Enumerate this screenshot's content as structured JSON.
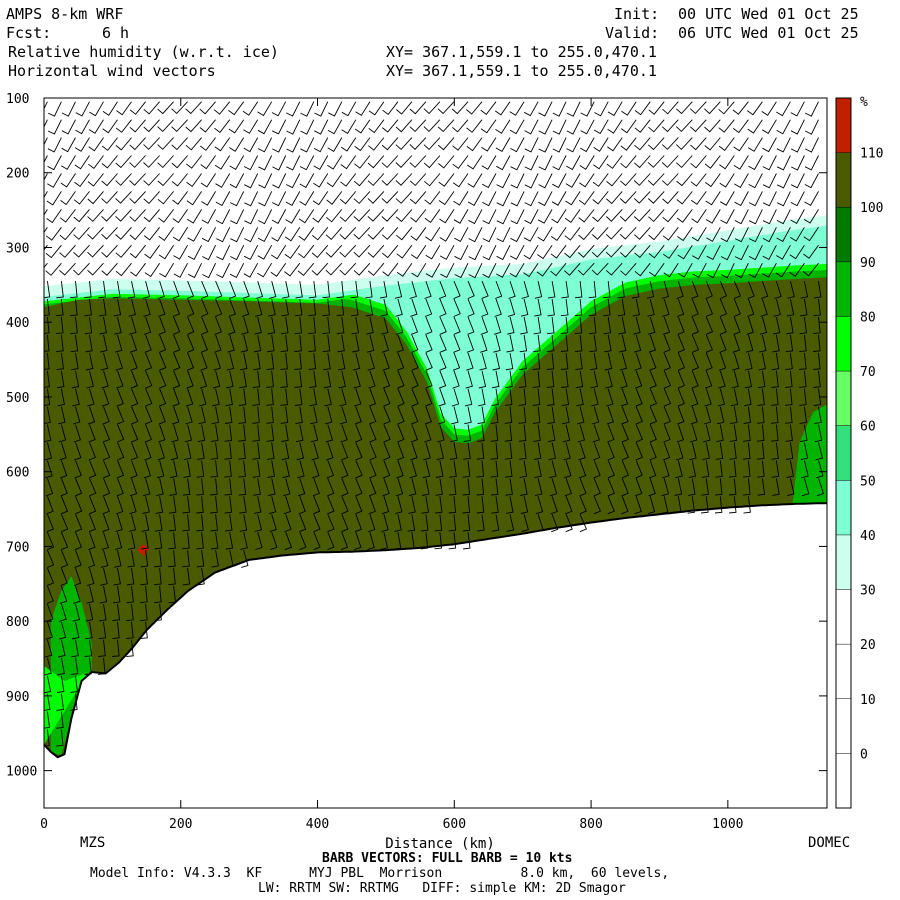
{
  "header": {
    "model": "AMPS 8-km WRF",
    "init_label": "Init:",
    "init_value": "00 UTC Wed 01 Oct 25",
    "fcst_label": "Fcst:",
    "fcst_value": "6 h",
    "valid_label": "Valid:",
    "valid_value": "06 UTC Wed 01 Oct 25",
    "field1": "Relative humidity (w.r.t. ice)",
    "field2": "Horizontal wind vectors",
    "xy1": "XY= 367.1,559.1 to 255.0,470.1",
    "xy2": "XY= 367.1,559.1 to 255.0,470.1"
  },
  "footer": {
    "barb_note": "BARB VECTORS: FULL BARB = 10 kts",
    "model_info": "Model Info: V4.3.3  KF      MYJ PBL  Morrison          8.0 km,  60 levels,",
    "physics": "LW: RRTM SW: RRTMG   DIFF: simple KM: 2D Smagor"
  },
  "chart_data": {
    "type": "heatmap",
    "xlabel": "Distance (km)",
    "ylabel": "",
    "x_ticks": [
      0,
      200,
      400,
      600,
      800,
      1000
    ],
    "y_ticks": [
      100,
      200,
      300,
      400,
      500,
      600,
      700,
      800,
      900,
      1000
    ],
    "xlim": [
      0,
      1145
    ],
    "ylim": [
      1050,
      100
    ],
    "start_label": "MZS",
    "end_label": "DOMEC",
    "colorbar": {
      "unit": "%",
      "levels": [
        0,
        10,
        20,
        30,
        40,
        50,
        60,
        70,
        80,
        90,
        100,
        110
      ],
      "colors": [
        "#ffffff",
        "#ffffff",
        "#ffffff",
        "#ffffff",
        "#ccffee",
        "#7fffd4",
        "#33e07a",
        "#66ff66",
        "#00ff00",
        "#00b400",
        "#007a00",
        "#4a5a00",
        "#c02000"
      ]
    },
    "terrain": {
      "x": [
        0,
        10,
        20,
        30,
        40,
        55,
        70,
        90,
        110,
        130,
        150,
        180,
        210,
        250,
        300,
        350,
        400,
        450,
        500,
        550,
        600,
        650,
        700,
        750,
        800,
        850,
        900,
        950,
        1000,
        1050,
        1100,
        1145
      ],
      "p": [
        965,
        975,
        982,
        978,
        930,
        880,
        868,
        870,
        855,
        835,
        812,
        785,
        760,
        735,
        718,
        712,
        708,
        707,
        705,
        702,
        697,
        690,
        683,
        675,
        668,
        662,
        657,
        652,
        648,
        645,
        643,
        642
      ]
    },
    "moist_top": {
      "x": [
        0,
        50,
        100,
        200,
        300,
        400,
        450,
        500,
        530,
        560,
        580,
        600,
        620,
        640,
        660,
        700,
        750,
        800,
        850,
        900,
        950,
        1000,
        1050,
        1100,
        1145
      ],
      "p": [
        380,
        370,
        368,
        370,
        372,
        375,
        380,
        395,
        430,
        480,
        540,
        560,
        562,
        555,
        520,
        470,
        430,
        390,
        365,
        355,
        350,
        348,
        345,
        342,
        340
      ]
    },
    "humid_band_top": {
      "x": [
        0,
        100,
        200,
        300,
        400,
        500,
        600,
        700,
        800,
        900,
        1000,
        1100,
        1145
      ],
      "p": [
        360,
        350,
        352,
        355,
        358,
        345,
        335,
        330,
        310,
        300,
        285,
        270,
        265
      ]
    },
    "surface_moist_pocket": {
      "x": [
        10,
        25,
        40,
        55,
        70
      ],
      "p_top": [
        800,
        760,
        740,
        775,
        830
      ]
    },
    "red_spot": {
      "x": 145,
      "p": 705
    }
  }
}
